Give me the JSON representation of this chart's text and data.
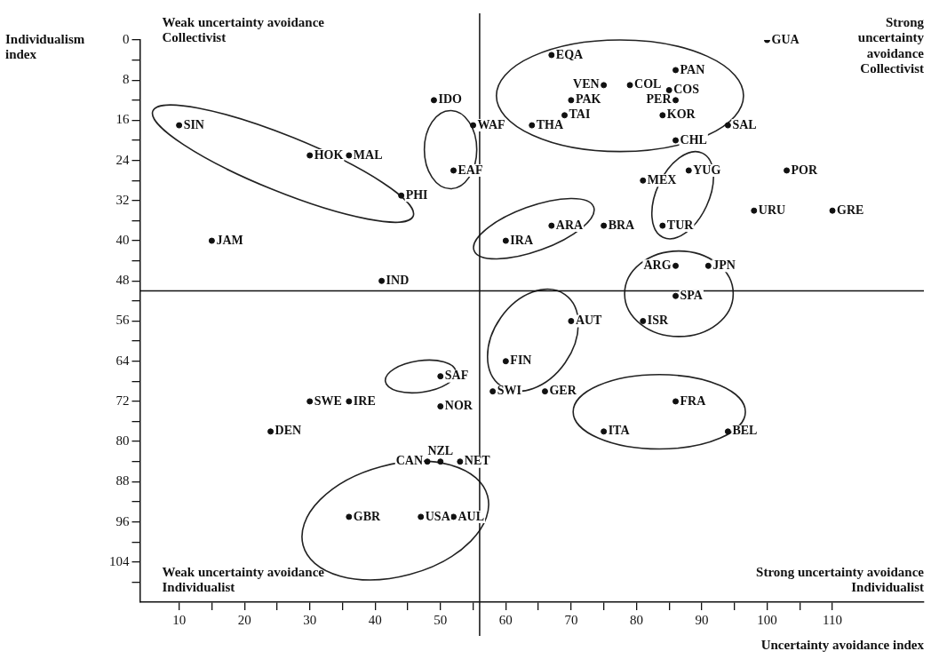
{
  "chart_data": {
    "type": "scatter",
    "ylabel": "Individualism index",
    "xlabel": "Uncertainty avoidance index",
    "color": "#111111",
    "marker": "circle",
    "grid": false,
    "legend": false,
    "xlim": [
      4,
      124
    ],
    "xticks": [
      10,
      {
        "value": 15,
        "label": null
      },
      20,
      {
        "value": 25,
        "label": null
      },
      30,
      {
        "value": 35,
        "label": null
      },
      40,
      {
        "value": 45,
        "label": null
      },
      50,
      {
        "value": 55,
        "label": null
      },
      60,
      {
        "value": 65,
        "label": null
      },
      70,
      {
        "value": 75,
        "label": null
      },
      80,
      {
        "value": 85,
        "label": null
      },
      90,
      {
        "value": 95,
        "label": null
      },
      100,
      {
        "value": 105,
        "label": null
      },
      110
    ],
    "ylim": [
      112,
      0
    ],
    "yticks": [
      0,
      {
        "value": 4,
        "label": null
      },
      8,
      {
        "value": 12,
        "label": null
      },
      16,
      {
        "value": 20,
        "label": null
      },
      24,
      {
        "value": 28,
        "label": null
      },
      32,
      {
        "value": 36,
        "label": null
      },
      40,
      {
        "value": 44,
        "label": null
      },
      48,
      {
        "value": 52,
        "label": null
      },
      56,
      {
        "value": 60,
        "label": null
      },
      64,
      {
        "value": 68,
        "label": null
      },
      72,
      {
        "value": 76,
        "label": null
      },
      80,
      {
        "value": 84,
        "label": null
      },
      88,
      {
        "value": 92,
        "label": null
      },
      96,
      {
        "value": 100,
        "label": null
      },
      104,
      {
        "value": 108,
        "label": null
      }
    ],
    "ref_lines": [
      {
        "axis": "x",
        "value": 56,
        "color": "#111111"
      },
      {
        "axis": "y",
        "value": 50,
        "color": "#111111"
      }
    ],
    "annotations": [
      "Weak uncertainty avoidance\nCollectivist",
      "Strong\nuncertainty\navoidance\nCollectivist",
      "Weak uncertainty avoidance\nIndividualist",
      "Strong uncertainty avoidance\nIndividualist"
    ],
    "series": [
      {
        "name": "SIN",
        "x": [
          10
        ],
        "values": [
          17
        ]
      },
      {
        "name": "HOK",
        "x": [
          30
        ],
        "values": [
          23
        ]
      },
      {
        "name": "MAL",
        "x": [
          36
        ],
        "values": [
          23
        ]
      },
      {
        "name": "PHI",
        "x": [
          44
        ],
        "values": [
          31
        ]
      },
      {
        "name": "IDO",
        "x": [
          49
        ],
        "values": [
          12
        ]
      },
      {
        "name": "WAF",
        "x": [
          55
        ],
        "values": [
          17
        ]
      },
      {
        "name": "EAF",
        "x": [
          52
        ],
        "values": [
          26
        ]
      },
      {
        "name": "JAM",
        "x": [
          15
        ],
        "values": [
          40
        ]
      },
      {
        "name": "IND",
        "x": [
          41
        ],
        "values": [
          48
        ]
      },
      {
        "name": "GUA",
        "x": [
          100
        ],
        "values": [
          0
        ]
      },
      {
        "name": "EQA",
        "x": [
          67
        ],
        "values": [
          3
        ]
      },
      {
        "name": "PAN",
        "x": [
          86
        ],
        "values": [
          6
        ]
      },
      {
        "name": "VEN",
        "x": [
          75
        ],
        "values": [
          9
        ]
      },
      {
        "name": "PAK",
        "x": [
          70
        ],
        "values": [
          12
        ]
      },
      {
        "name": "COL",
        "x": [
          79
        ],
        "values": [
          9
        ]
      },
      {
        "name": "COS",
        "x": [
          85
        ],
        "values": [
          10
        ]
      },
      {
        "name": "PER",
        "x": [
          86
        ],
        "values": [
          12
        ]
      },
      {
        "name": "TAI",
        "x": [
          69
        ],
        "values": [
          15
        ]
      },
      {
        "name": "KOR",
        "x": [
          84
        ],
        "values": [
          15
        ]
      },
      {
        "name": "THA",
        "x": [
          64
        ],
        "values": [
          17
        ]
      },
      {
        "name": "SAL",
        "x": [
          94
        ],
        "values": [
          17
        ]
      },
      {
        "name": "CHL",
        "x": [
          86
        ],
        "values": [
          20
        ]
      },
      {
        "name": "MEX",
        "x": [
          81
        ],
        "values": [
          28
        ]
      },
      {
        "name": "YUG",
        "x": [
          88
        ],
        "values": [
          26
        ]
      },
      {
        "name": "POR",
        "x": [
          103
        ],
        "values": [
          26
        ]
      },
      {
        "name": "TUR",
        "x": [
          84
        ],
        "values": [
          37
        ]
      },
      {
        "name": "URU",
        "x": [
          98
        ],
        "values": [
          34
        ]
      },
      {
        "name": "GRE",
        "x": [
          110
        ],
        "values": [
          34
        ]
      },
      {
        "name": "ARA",
        "x": [
          67
        ],
        "values": [
          37
        ]
      },
      {
        "name": "IRA",
        "x": [
          60
        ],
        "values": [
          40
        ]
      },
      {
        "name": "BRA",
        "x": [
          75
        ],
        "values": [
          37
        ]
      },
      {
        "name": "ARG",
        "x": [
          86
        ],
        "values": [
          45
        ]
      },
      {
        "name": "JPN",
        "x": [
          91
        ],
        "values": [
          45
        ]
      },
      {
        "name": "SPA",
        "x": [
          86
        ],
        "values": [
          51
        ]
      },
      {
        "name": "ISR",
        "x": [
          81
        ],
        "values": [
          56
        ]
      },
      {
        "name": "AUT",
        "x": [
          70
        ],
        "values": [
          56
        ]
      },
      {
        "name": "FIN",
        "x": [
          60
        ],
        "values": [
          64
        ]
      },
      {
        "name": "SWI",
        "x": [
          58
        ],
        "values": [
          70
        ]
      },
      {
        "name": "GER",
        "x": [
          66
        ],
        "values": [
          70
        ]
      },
      {
        "name": "FRA",
        "x": [
          86
        ],
        "values": [
          72
        ]
      },
      {
        "name": "ITA",
        "x": [
          75
        ],
        "values": [
          78
        ]
      },
      {
        "name": "BEL",
        "x": [
          94
        ],
        "values": [
          78
        ]
      },
      {
        "name": "SAF",
        "x": [
          50
        ],
        "values": [
          67
        ]
      },
      {
        "name": "SWE",
        "x": [
          30
        ],
        "values": [
          72
        ]
      },
      {
        "name": "IRE",
        "x": [
          36
        ],
        "values": [
          72
        ]
      },
      {
        "name": "NOR",
        "x": [
          50
        ],
        "values": [
          73
        ]
      },
      {
        "name": "DEN",
        "x": [
          24
        ],
        "values": [
          78
        ]
      },
      {
        "name": "CAN",
        "x": [
          48
        ],
        "values": [
          84
        ]
      },
      {
        "name": "NZL",
        "x": [
          50
        ],
        "values": [
          84
        ]
      },
      {
        "name": "NET",
        "x": [
          53
        ],
        "values": [
          84
        ]
      },
      {
        "name": "GBR",
        "x": [
          36
        ],
        "values": [
          95
        ]
      },
      {
        "name": "USA",
        "x": [
          47
        ],
        "values": [
          95
        ]
      },
      {
        "name": "AUL",
        "x": [
          52
        ],
        "values": [
          95
        ]
      }
    ]
  }
}
